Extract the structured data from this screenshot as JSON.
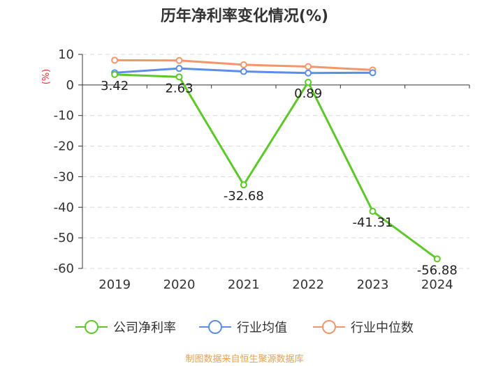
{
  "chart_data": {
    "type": "line",
    "title": "历年净利率变化情况(%)",
    "ylabel": "(%)",
    "xlabel": "",
    "categories": [
      "2019",
      "2020",
      "2021",
      "2022",
      "2023",
      "2024"
    ],
    "ylim": [
      -60,
      10
    ],
    "yticks": [
      10,
      0,
      -10,
      -20,
      -30,
      -40,
      -50,
      -60
    ],
    "grid": true,
    "legend_position": "bottom",
    "series": [
      {
        "name": "公司净利率",
        "color": "#5cc82a",
        "values": [
          3.42,
          2.63,
          -32.68,
          0.89,
          -41.31,
          -56.88
        ],
        "labels": [
          "3.42",
          "2.63",
          "-32.68",
          "0.89",
          "-41.31",
          "-56.88"
        ]
      },
      {
        "name": "行业均值",
        "color": "#5b8ee6",
        "values": [
          4.0,
          5.4,
          4.4,
          3.9,
          4.0,
          null
        ]
      },
      {
        "name": "行业中位数",
        "color": "#f5956a",
        "values": [
          8.1,
          8.0,
          6.6,
          6.0,
          4.9,
          null
        ]
      }
    ]
  },
  "source_note": "制图数据来自恒生聚源数据库"
}
